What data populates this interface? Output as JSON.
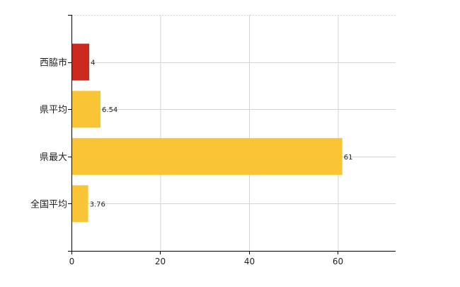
{
  "chart_data": {
    "type": "bar",
    "orientation": "horizontal",
    "categories": [
      "西脇市",
      "県平均",
      "県最大",
      "全国平均"
    ],
    "values": [
      4,
      6.54,
      61,
      3.76
    ],
    "data_labels": [
      "4",
      "6.54",
      "61",
      "3.76"
    ],
    "bar_colors": [
      "#cc2a1e",
      "#f9c436",
      "#f9c436",
      "#f9c436"
    ],
    "xlim": [
      0,
      73
    ],
    "x_ticks": [
      0,
      20,
      40,
      60
    ],
    "x_tick_labels": [
      "0",
      "20",
      "40",
      "60"
    ],
    "grid": true,
    "legend": "none",
    "title": "",
    "xlabel": "",
    "ylabel": ""
  }
}
